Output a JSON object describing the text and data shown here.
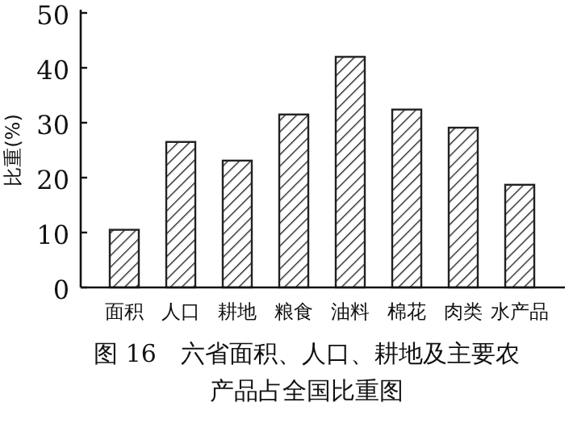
{
  "chart_data": {
    "type": "bar",
    "title": "图 16　六省面积、人口、耕地及主要农产品占全国比重图",
    "ylabel": "比重(%)",
    "categories": [
      "面积",
      "人口",
      "耕地",
      "粮食",
      "油料",
      "棉花",
      "肉类",
      "水产品"
    ],
    "values": [
      10.5,
      26.5,
      23.1,
      31.5,
      42.0,
      32.4,
      29.1,
      18.7
    ],
    "color": "#222222",
    "ylim": [
      0,
      50
    ],
    "yticks": [
      0,
      10,
      20,
      30,
      40,
      50
    ],
    "grid": false
  }
}
